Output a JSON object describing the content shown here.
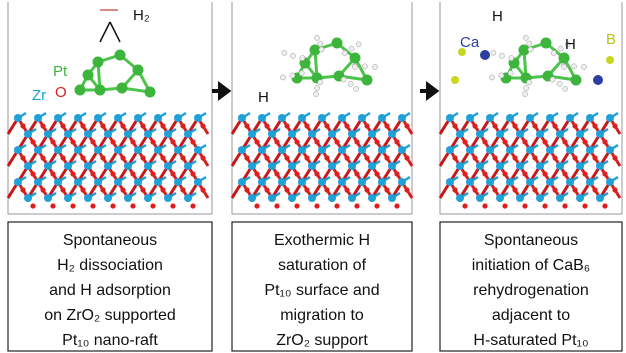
{
  "panels": [
    {
      "labels": [
        "H₂",
        "Pt",
        "Zr",
        "O"
      ],
      "caption": [
        "Spontaneous",
        "H₂ dissociation",
        "and H adsorption",
        "on ZrO₂ supported",
        "Pt₁₀ nano-raft"
      ]
    },
    {
      "labels": [
        "H"
      ],
      "caption": [
        "Exothermic H",
        "saturation of",
        "Pt₁₀ surface and",
        "migration to",
        "ZrO₂ support"
      ]
    },
    {
      "labels": [
        "Ca",
        "H",
        "H",
        "B"
      ],
      "caption": [
        "Spontaneous",
        "initiation of CaB₆",
        "rehydrogenation",
        "adjacent to",
        "H-saturated Pt₁₀"
      ]
    }
  ]
}
